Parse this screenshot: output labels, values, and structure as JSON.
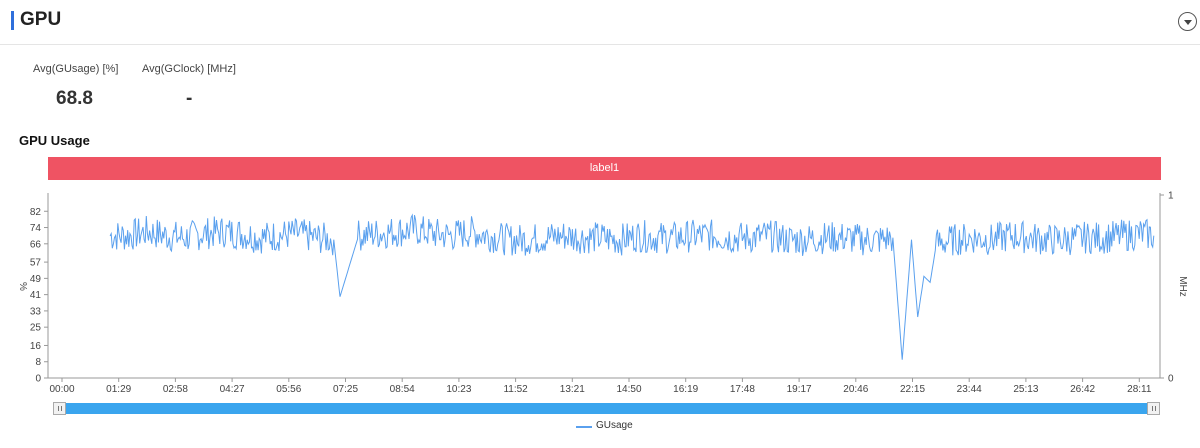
{
  "header": {
    "title": "GPU",
    "collapse_icon": "chevron-down-icon"
  },
  "stats": [
    {
      "label": "Avg(GUsage) [%]",
      "value": "68.8"
    },
    {
      "label": "Avg(GClock) [MHz]",
      "value": "-"
    }
  ],
  "section": {
    "title": "GPU Usage",
    "label_bar": "label1"
  },
  "colors": {
    "accent": "#2f6fdb",
    "label_bar": "#ef5363",
    "line": "#5aa0ee",
    "slider": "#3aa5ee"
  },
  "slider": {
    "range_start": 0,
    "range_end": 1
  },
  "chart_data": {
    "type": "line",
    "title": "GPU Usage",
    "ylabel": "%",
    "y2label": "MHz",
    "x_tick_labels": [
      "00:00",
      "01:29",
      "02:58",
      "04:27",
      "05:56",
      "07:25",
      "08:54",
      "10:23",
      "11:52",
      "13:21",
      "14:50",
      "16:19",
      "17:48",
      "19:17",
      "20:46",
      "22:15",
      "23:44",
      "25:13",
      "26:42",
      "28:11"
    ],
    "y_tick_labels": [
      "0",
      "8",
      "16",
      "25",
      "33",
      "41",
      "49",
      "57",
      "66",
      "74",
      "82"
    ],
    "y_ticks": [
      0,
      8,
      16,
      25,
      33,
      41,
      49,
      57,
      66,
      74,
      82
    ],
    "y2_tick_labels": [
      "0",
      "1"
    ],
    "ylim": [
      0,
      90
    ],
    "xlim_seconds": [
      0,
      1790
    ],
    "grid": false,
    "legend_position": "bottom-center",
    "series": [
      {
        "name": "GUsage",
        "x_seconds": [
          100,
          130,
          160,
          190,
          220,
          250,
          280,
          310,
          340,
          370,
          400,
          430,
          460,
          470,
          500,
          530,
          560,
          590,
          620,
          650,
          680,
          710,
          740,
          770,
          800,
          830,
          860,
          890,
          920,
          950,
          980,
          1010,
          1040,
          1070,
          1100,
          1130,
          1160,
          1190,
          1220,
          1250,
          1280,
          1310,
          1340,
          1360,
          1375,
          1390,
          1400,
          1410,
          1420,
          1430,
          1460,
          1490,
          1520,
          1550,
          1580,
          1610,
          1640,
          1670,
          1700,
          1730,
          1760,
          1780
        ],
        "values": [
          70,
          70,
          72,
          70,
          69,
          71,
          72,
          71,
          69,
          70,
          71,
          69,
          68,
          40,
          70,
          71,
          72,
          73,
          71,
          70,
          72,
          70,
          68,
          68,
          69,
          70,
          69,
          69,
          68,
          70,
          69,
          69,
          70,
          70,
          69,
          69,
          70,
          68,
          68,
          69,
          69,
          68,
          68,
          69,
          9,
          68,
          30,
          50,
          47,
          66,
          68,
          69,
          68,
          70,
          69,
          68,
          68,
          69,
          69,
          70,
          71,
          70
        ]
      }
    ]
  }
}
